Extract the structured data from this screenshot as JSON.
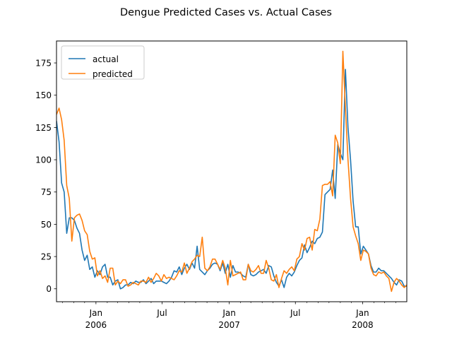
{
  "chart_data": {
    "type": "line",
    "title": "Dengue Predicted Cases vs. Actual Cases",
    "xlabel": "",
    "ylabel": "",
    "ylim": [
      -10,
      192
    ],
    "yticks": [
      0,
      25,
      50,
      75,
      100,
      125,
      150,
      175
    ],
    "x_range": [
      "2005-09-15",
      "2008-05-01"
    ],
    "x_major_ticks": [
      {
        "date": "2006-01-01",
        "label": "Jan",
        "year": "2006"
      },
      {
        "date": "2006-07-01",
        "label": "Jul",
        "year": ""
      },
      {
        "date": "2007-01-01",
        "label": "Jan",
        "year": "2007"
      },
      {
        "date": "2007-07-01",
        "label": "Jul",
        "year": ""
      },
      {
        "date": "2008-01-01",
        "label": "Jan",
        "year": "2008"
      }
    ],
    "x_minor_ticks": [
      "2005-10-01",
      "2005-11-01",
      "2005-12-01",
      "2006-02-01",
      "2006-03-01",
      "2006-04-01",
      "2006-05-01",
      "2006-06-01",
      "2006-08-01",
      "2006-09-01",
      "2006-10-01",
      "2006-11-01",
      "2006-12-01",
      "2007-02-01",
      "2007-03-01",
      "2007-04-01",
      "2007-05-01",
      "2007-06-01",
      "2007-08-01",
      "2007-09-01",
      "2007-10-01",
      "2007-11-01",
      "2007-12-01",
      "2008-02-01",
      "2008-03-01",
      "2008-04-01"
    ],
    "grid": false,
    "legend_position": "top-left",
    "series": [
      {
        "name": "actual",
        "color": "#1f77b4",
        "start": "2005-09-15",
        "step_days": 7,
        "values": [
          130,
          114,
          82,
          75,
          43,
          55,
          55,
          53,
          47,
          43,
          30,
          22,
          26,
          15,
          17,
          9,
          14,
          11,
          17,
          19,
          9,
          9,
          3,
          6,
          7,
          0,
          1,
          3,
          3,
          5,
          4,
          6,
          5,
          5,
          7,
          4,
          6,
          8,
          4,
          6,
          6,
          6,
          5,
          4,
          6,
          9,
          14,
          13,
          17,
          11,
          16,
          19,
          15,
          20,
          16,
          33,
          15,
          13,
          11,
          14,
          16,
          19,
          20,
          19,
          14,
          20,
          12,
          19,
          9,
          18,
          13,
          13,
          12,
          10,
          9,
          19,
          11,
          10,
          11,
          13,
          14,
          15,
          12,
          18,
          17,
          10,
          5,
          2,
          7,
          1,
          9,
          12,
          10,
          13,
          18,
          22,
          24,
          34,
          28,
          32,
          37,
          35,
          39,
          40,
          44,
          73,
          75,
          77,
          92,
          70,
          112,
          105,
          100,
          170,
          125,
          100,
          68,
          48,
          48,
          27,
          33,
          30,
          27,
          18,
          13,
          13,
          16,
          14,
          14,
          12,
          10,
          8,
          5,
          3,
          7,
          6,
          2,
          2,
          3,
          2,
          4,
          3,
          1,
          3
        ]
      },
      {
        "name": "predicted",
        "color": "#ff7f0e",
        "start": "2005-09-15",
        "step_days": 7,
        "values": [
          135,
          140,
          131,
          115,
          80,
          70,
          37,
          55,
          57,
          58,
          53,
          45,
          42,
          29,
          23,
          24,
          10,
          14,
          8,
          10,
          5,
          16,
          16,
          3,
          6,
          4,
          7,
          7,
          2,
          3,
          5,
          4,
          3,
          6,
          6,
          5,
          9,
          5,
          8,
          12,
          10,
          6,
          11,
          8,
          9,
          8,
          7,
          10,
          14,
          13,
          20,
          12,
          16,
          21,
          23,
          26,
          25,
          40,
          16,
          14,
          17,
          23,
          23,
          19,
          15,
          22,
          16,
          3,
          22,
          10,
          11,
          12,
          13,
          7,
          7,
          19,
          14,
          13,
          15,
          18,
          12,
          12,
          22,
          16,
          7,
          6,
          11,
          1,
          8,
          14,
          12,
          15,
          17,
          14,
          23,
          25,
          35,
          30,
          39,
          40,
          30,
          46,
          45,
          54,
          80,
          81,
          81,
          83,
          72,
          119,
          113,
          97,
          184,
          140,
          100,
          70,
          48,
          41,
          35,
          22,
          30,
          29,
          27,
          16,
          11,
          10,
          13,
          12,
          13,
          10,
          8,
          -2,
          5,
          8,
          6,
          3,
          1,
          3,
          4,
          4,
          4,
          5,
          5,
          1
        ]
      }
    ]
  }
}
